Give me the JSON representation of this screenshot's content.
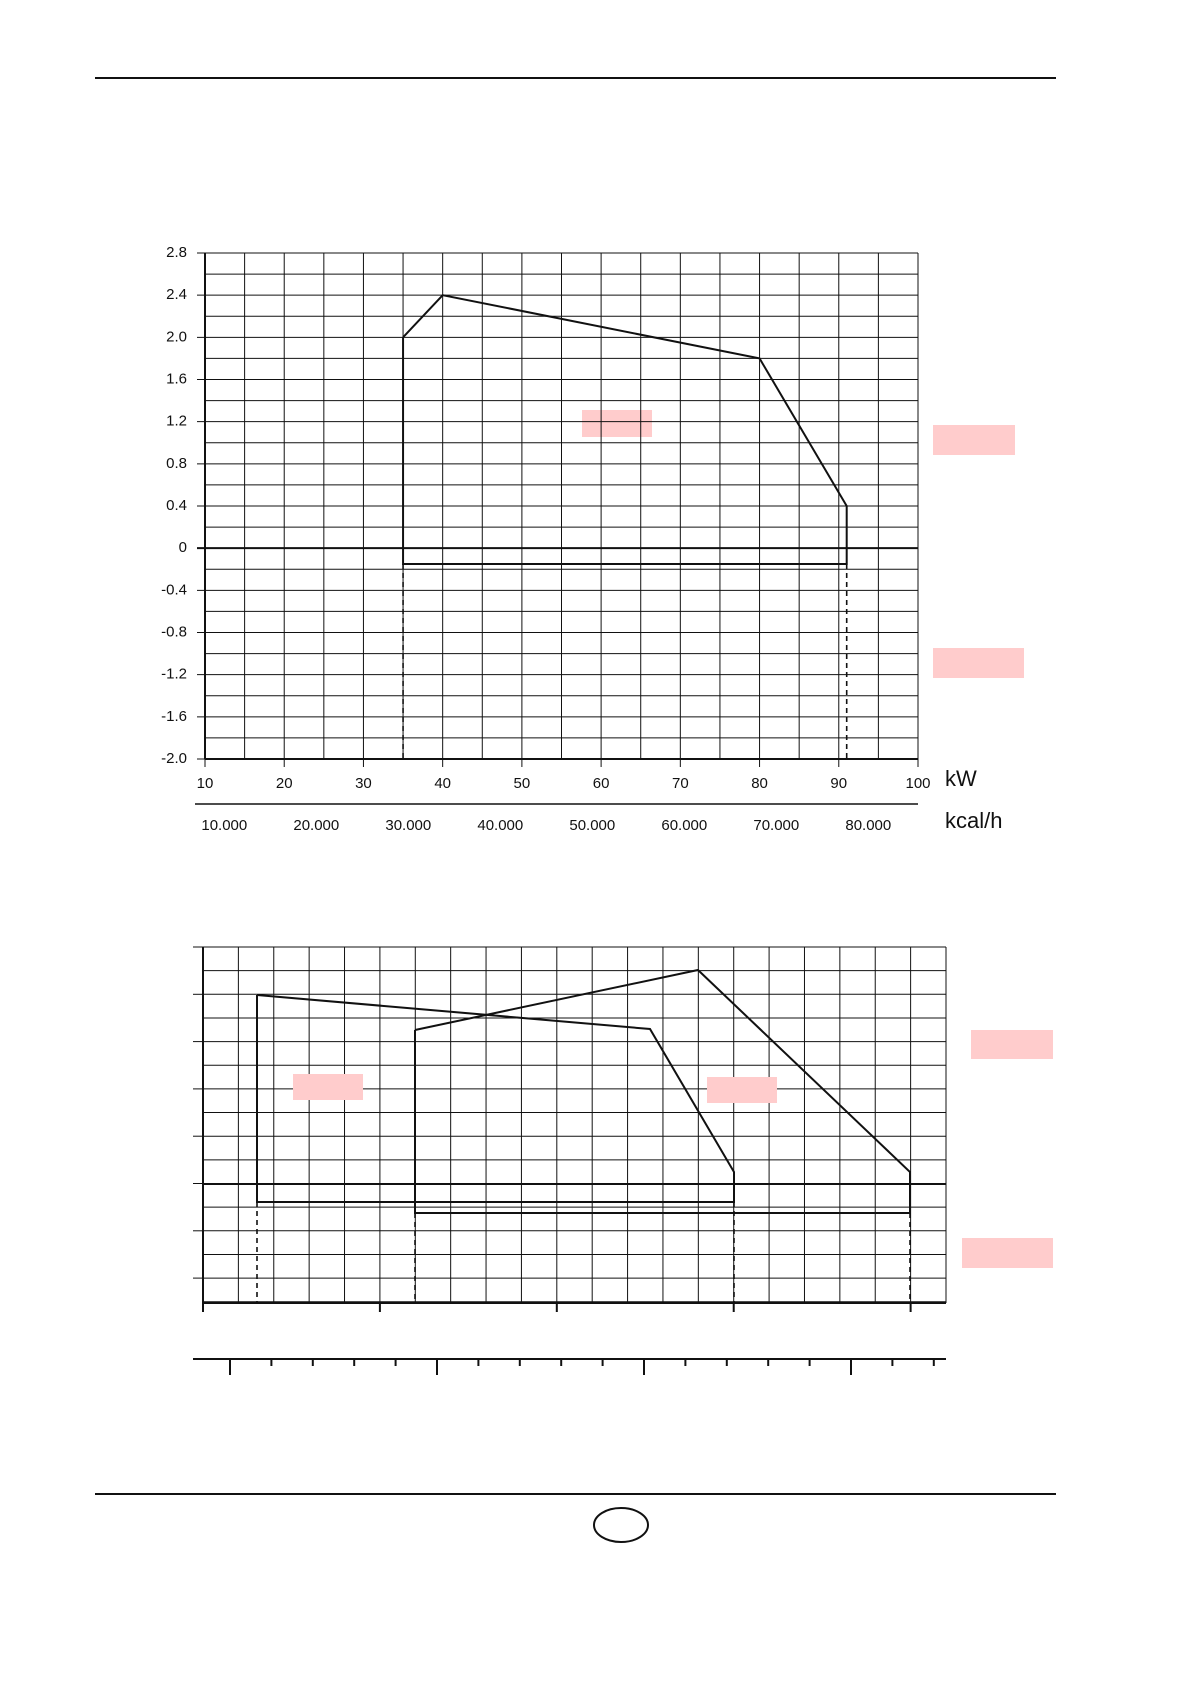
{
  "chart_data": [
    {
      "type": "line",
      "xlabel": "kW",
      "x2label": "kcal/h",
      "xlim": [
        10,
        100
      ],
      "xticks": [
        10,
        20,
        30,
        40,
        50,
        60,
        70,
        80,
        90,
        100
      ],
      "ylim": [
        -2.0,
        2.8
      ],
      "yticks": [
        {
          "value": -2.0,
          "label": "-2.0"
        },
        -1.6,
        -1.2,
        -0.8,
        -0.4,
        0,
        0.4,
        0.8,
        1.2,
        1.6,
        {
          "value": 2.0,
          "label": "2.0"
        },
        2.4,
        2.8
      ],
      "x2lim": [
        7900,
        85400
      ],
      "x2ticks": [
        {
          "value": 10000,
          "label": "10.000"
        },
        {
          "value": 20000,
          "label": "20.000"
        },
        {
          "value": 30000,
          "label": "30.000"
        },
        {
          "value": 40000,
          "label": "40.000"
        },
        {
          "value": 50000,
          "label": "50.000"
        },
        {
          "value": 60000,
          "label": "60.000"
        },
        {
          "value": 70000,
          "label": "70.000"
        },
        {
          "value": 80000,
          "label": "80.000"
        }
      ],
      "grid": true,
      "series": [
        {
          "color": "#111111",
          "x": [
            35,
            40,
            80,
            91,
            91,
            35,
            35
          ],
          "values": [
            2.0,
            2.4,
            1.8,
            0.4,
            -0.15,
            -0.15,
            2.0
          ]
        }
      ],
      "vlines": [
        35,
        91
      ]
    }
  ]
}
